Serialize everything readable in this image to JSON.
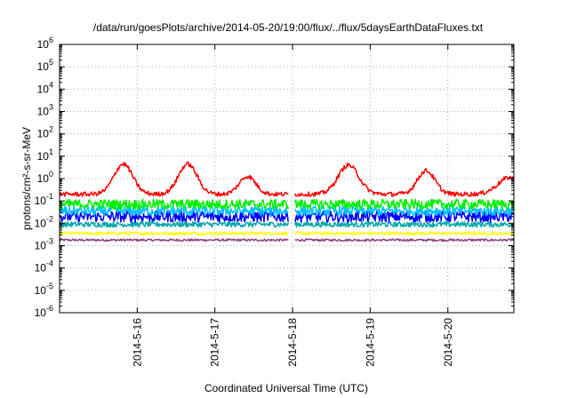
{
  "chart_data": {
    "type": "line",
    "title": "/data/run/goesPlots/archive/2014-05-20/19:00/flux/../flux/5daysEarthDataFluxes.txt",
    "xlabel": "Coordinated Universal Time (UTC)",
    "ylabel": "protons/cm²-s-sr-MeV",
    "y_scale": "log",
    "ylim_exponents": [
      -6,
      6
    ],
    "y_tick_exponents": [
      -6,
      -5,
      -4,
      -3,
      -2,
      -1,
      0,
      1,
      2,
      3,
      4,
      5,
      6
    ],
    "x_range_days": [
      0,
      5.85
    ],
    "x_ticks": [
      {
        "label": "2014-5-16",
        "day": 1.0
      },
      {
        "label": "2014-5-17",
        "day": 2.0
      },
      {
        "label": "2014-5-18",
        "day": 3.0
      },
      {
        "label": "2014-5-19",
        "day": 4.0
      },
      {
        "label": "2014-5-20",
        "day": 5.0
      }
    ],
    "data_gap_days": [
      2.95,
      3.03
    ],
    "grid": true,
    "legend": "none",
    "series": [
      {
        "color": "#ff0000",
        "base_log10": -0.7,
        "noise": 0.1,
        "peaks": [
          {
            "day": 0.82,
            "amp": 1.35,
            "width": 0.17
          },
          {
            "day": 1.65,
            "amp": 1.35,
            "width": 0.17
          },
          {
            "day": 2.42,
            "amp": 0.8,
            "width": 0.15
          },
          {
            "day": 3.72,
            "amp": 1.3,
            "width": 0.19
          },
          {
            "day": 4.72,
            "amp": 1.05,
            "width": 0.16
          },
          {
            "day": 5.8,
            "amp": 0.75,
            "width": 0.22
          }
        ]
      },
      {
        "color": "#00ee00",
        "base_log10": -1.15,
        "noise": 0.22,
        "peaks": []
      },
      {
        "color": "#00c0ff",
        "base_log10": -1.45,
        "noise": 0.22,
        "peaks": []
      },
      {
        "color": "#0000ff",
        "base_log10": -1.7,
        "noise": 0.25,
        "peaks": []
      },
      {
        "color": "#00a8a8",
        "base_log10": -2.05,
        "noise": 0.12,
        "peaks": []
      },
      {
        "color": "#ffff00",
        "base_log10": -2.45,
        "noise": 0.07,
        "peaks": []
      },
      {
        "color": "#904080",
        "base_log10": -2.75,
        "noise": 0.05,
        "peaks": []
      }
    ]
  }
}
